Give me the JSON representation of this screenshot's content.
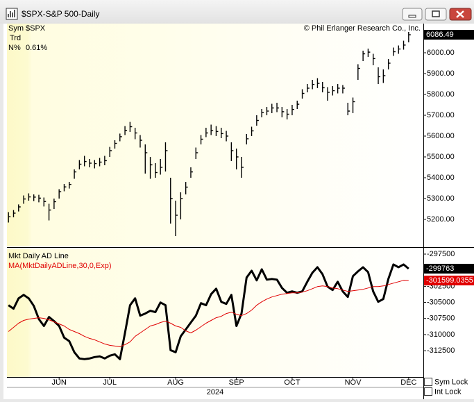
{
  "window": {
    "title": "$SPX-S&P 500-Daily"
  },
  "info": {
    "sym_label": "Sym",
    "sym": "$SPX",
    "trd_label": "Trd",
    "n_label": "N%",
    "n": "0.61%"
  },
  "controls": [
    "Sym Lock",
    "Int Lock"
  ],
  "chart_data": [
    {
      "type": "ohlc",
      "annotation": "© Phil Erlanger Research Co., Inc.",
      "color": "#000000",
      "high": [
        5235,
        5245,
        5272,
        5315,
        5325,
        5320,
        5318,
        5305,
        5275,
        5300,
        5345,
        5370,
        5380,
        5440,
        5485,
        5505,
        5490,
        5485,
        5495,
        5505,
        5548,
        5580,
        5612,
        5648,
        5668,
        5640,
        5605,
        5560,
        5500,
        5470,
        5490,
        5570,
        5400,
        5290,
        5330,
        5380,
        5450,
        5545,
        5605,
        5640,
        5655,
        5648,
        5640,
        5625,
        5570,
        5540,
        5500,
        5610,
        5645,
        5700,
        5730,
        5740,
        5755,
        5760,
        5740,
        5730,
        5750,
        5770,
        5825,
        5850,
        5870,
        5878,
        5860,
        5835,
        5840,
        5850,
        5845,
        5760,
        5785,
        5945,
        6010,
        6020,
        5995,
        5930,
        5920,
        5970,
        6025,
        6035,
        6058,
        6100
      ],
      "low": [
        5185,
        5210,
        5238,
        5275,
        5290,
        5288,
        5282,
        5262,
        5195,
        5250,
        5300,
        5335,
        5348,
        5395,
        5440,
        5455,
        5450,
        5445,
        5455,
        5460,
        5500,
        5540,
        5575,
        5605,
        5620,
        5585,
        5545,
        5420,
        5395,
        5400,
        5415,
        5430,
        5180,
        5120,
        5200,
        5320,
        5400,
        5490,
        5560,
        5595,
        5605,
        5600,
        5590,
        5575,
        5480,
        5440,
        5400,
        5560,
        5600,
        5650,
        5690,
        5700,
        5710,
        5715,
        5690,
        5680,
        5700,
        5730,
        5780,
        5810,
        5825,
        5830,
        5810,
        5770,
        5795,
        5805,
        5805,
        5700,
        5710,
        5870,
        5960,
        5980,
        5940,
        5850,
        5855,
        5920,
        5985,
        5995,
        6015,
        6050
      ],
      "close": [
        5213,
        5230,
        5260,
        5298,
        5308,
        5307,
        5302,
        5286,
        5245,
        5285,
        5333,
        5356,
        5368,
        5428,
        5465,
        5478,
        5470,
        5468,
        5475,
        5482,
        5530,
        5565,
        5597,
        5627,
        5645,
        5615,
        5580,
        5520,
        5462,
        5425,
        5450,
        5530,
        5300,
        5220,
        5300,
        5355,
        5428,
        5520,
        5585,
        5615,
        5626,
        5622,
        5612,
        5600,
        5530,
        5500,
        5450,
        5587,
        5625,
        5675,
        5713,
        5720,
        5735,
        5735,
        5717,
        5705,
        5728,
        5753,
        5805,
        5830,
        5848,
        5853,
        5832,
        5810,
        5818,
        5830,
        5830,
        5720,
        5765,
        5925,
        5995,
        6003,
        5972,
        5885,
        5890,
        5950,
        6005,
        6018,
        6037,
        6086.49
      ],
      "xlim": [
        -0.3,
        81.9
      ],
      "ylim": [
        5070,
        6140
      ],
      "yticks": [
        {
          "value": 5200,
          "label": "5200.00"
        },
        {
          "value": 5300,
          "label": "5300.00"
        },
        {
          "value": 5400,
          "label": "5400.00"
        },
        {
          "value": 5500,
          "label": "5500.00"
        },
        {
          "value": 5600,
          "label": "5600.00"
        },
        {
          "value": 5700,
          "label": "5700.00"
        },
        {
          "value": 5800,
          "label": "5800.00"
        },
        {
          "value": 5900,
          "label": "5900.00"
        },
        {
          "value": 6000,
          "label": "6000.00"
        }
      ]
    },
    {
      "type": "line",
      "series": [
        {
          "name": "Mkt Daily AD Line",
          "color": "#000000",
          "values": [
            -305440,
            -305977,
            -304367,
            -303831,
            -304367,
            -305548,
            -307586,
            -308659,
            -307264,
            -307908,
            -308659,
            -310483,
            -311020,
            -312737,
            -313702,
            -313810,
            -313702,
            -313488,
            -313380,
            -313702,
            -313273,
            -313059,
            -313810,
            -309732,
            -305440,
            -304367,
            -307050,
            -306728,
            -306299,
            -306513,
            -305011,
            -305440,
            -312415,
            -312737,
            -310269,
            -309196,
            -308123,
            -307050,
            -305118,
            -305440,
            -303723,
            -302865,
            -304904,
            -305226,
            -303831,
            -308659,
            -306728,
            -301148,
            -300075,
            -301577,
            -299861,
            -301470,
            -301363,
            -301470,
            -302758,
            -303509,
            -303294,
            -303509,
            -303294,
            -301792,
            -300397,
            -299539,
            -300612,
            -302543,
            -303080,
            -301792,
            -303294,
            -304153,
            -300934,
            -300183,
            -299539,
            -300290,
            -303294,
            -304904,
            -304475,
            -301363,
            -299110,
            -299539,
            -299110,
            -299763
          ]
        },
        {
          "name": "MA(MktDailyADLine,30,0,Exp)",
          "color": "#e00000",
          "values": [
            -309518,
            -308874,
            -308230,
            -307801,
            -307586,
            -307479,
            -307372,
            -307479,
            -307694,
            -308015,
            -308337,
            -308659,
            -309196,
            -309518,
            -309840,
            -310269,
            -310591,
            -310805,
            -311127,
            -311449,
            -311664,
            -311771,
            -311878,
            -311556,
            -311127,
            -310269,
            -309732,
            -309196,
            -308659,
            -308445,
            -308123,
            -307908,
            -308230,
            -308659,
            -308874,
            -309410,
            -309732,
            -309303,
            -308767,
            -308230,
            -307801,
            -307372,
            -307157,
            -306728,
            -306513,
            -306835,
            -307050,
            -306728,
            -306191,
            -305440,
            -304904,
            -304475,
            -304153,
            -303938,
            -303723,
            -303616,
            -303509,
            -303509,
            -303402,
            -303187,
            -302865,
            -302543,
            -302436,
            -302543,
            -302758,
            -302865,
            -303080,
            -303294,
            -303187,
            -303080,
            -302972,
            -302758,
            -302543,
            -302543,
            -302436,
            -302221,
            -302007,
            -301792,
            -301577,
            -301599.0355
          ]
        }
      ],
      "xlim": [
        -0.3,
        81.9
      ],
      "xticks": [
        {
          "value": 10,
          "label": "JUN"
        },
        {
          "value": 20,
          "label": "JUL"
        },
        {
          "value": 33,
          "label": "AUG"
        },
        {
          "value": 45,
          "label": "SEP"
        },
        {
          "value": 56,
          "label": "OCT"
        },
        {
          "value": 68,
          "label": "NOV"
        },
        {
          "value": 79,
          "label": "DEC"
        }
      ],
      "xlabel": "2024",
      "ylim": [
        -316580,
        -296640
      ],
      "yticks": [
        -312500,
        -310000,
        -307500,
        -305000,
        -302500,
        -297500
      ]
    }
  ]
}
